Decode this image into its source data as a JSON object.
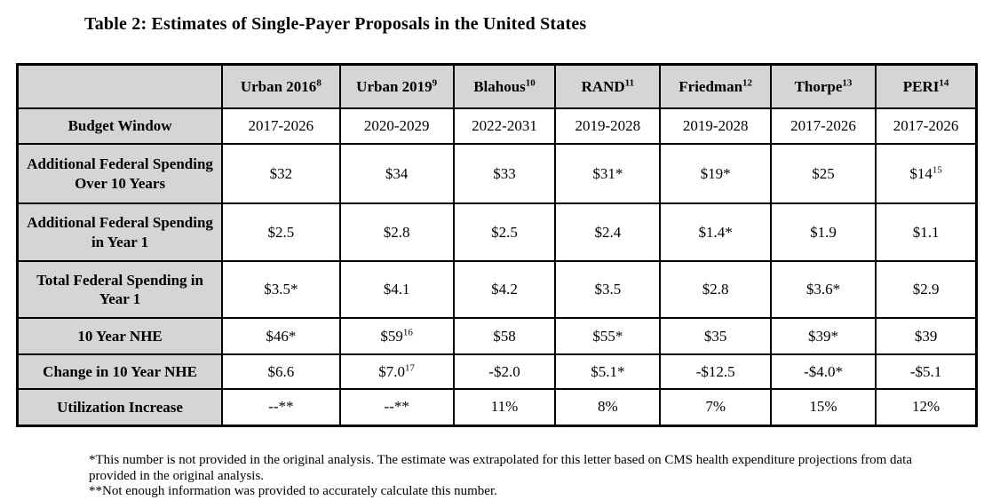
{
  "title": "Table 2: Estimates of Single-Payer Proposals in the United States",
  "table": {
    "corner_label": "",
    "columns": [
      "Urban 2016^8",
      "Urban 2019^9",
      "Blahous^10",
      "RAND^11",
      "Friedman^12",
      "Thorpe^13",
      "PERI^14"
    ],
    "rows": [
      {
        "label": "Budget Window",
        "cells": [
          "2017-2026",
          "2020-2029",
          "2022-2031",
          "2019-2028",
          "2019-2028",
          "2017-2026",
          "2017-2026"
        ]
      },
      {
        "label": "Additional Federal Spending Over 10 Years",
        "cells": [
          "$32",
          "$34",
          "$33",
          "$31*",
          "$19*",
          "$25",
          "$14^15"
        ]
      },
      {
        "label": "Additional Federal Spending in Year 1",
        "cells": [
          "$2.5",
          "$2.8",
          "$2.5",
          "$2.4",
          "$1.4*",
          "$1.9",
          "$1.1"
        ]
      },
      {
        "label": "Total Federal Spending in Year 1",
        "cells": [
          "$3.5*",
          "$4.1",
          "$4.2",
          "$3.5",
          "$2.8",
          "$3.6*",
          "$2.9"
        ]
      },
      {
        "label": "10 Year NHE",
        "cells": [
          "$46*",
          "$59^16",
          "$58",
          "$55*",
          "$35",
          "$39*",
          "$39"
        ]
      },
      {
        "label": "Change in 10 Year NHE",
        "cells": [
          "$6.6",
          "$7.0^17",
          "-$2.0",
          "$5.1*",
          "-$12.5",
          "-$4.0*",
          "-$5.1"
        ]
      },
      {
        "label": "Utilization Increase",
        "cells": [
          "--**",
          "--**",
          "11%",
          "8%",
          "7%",
          "15%",
          "12%"
        ]
      }
    ]
  },
  "footnotes": [
    "*This number is not provided in the original analysis. The estimate was extrapolated for this letter based on CMS health expenditure projections from data provided in the original analysis.",
    "**Not enough information was provided to accurately calculate this number."
  ],
  "colors": {
    "header_fill": "#d5d5d5",
    "border": "#000000",
    "background": "#ffffff"
  }
}
